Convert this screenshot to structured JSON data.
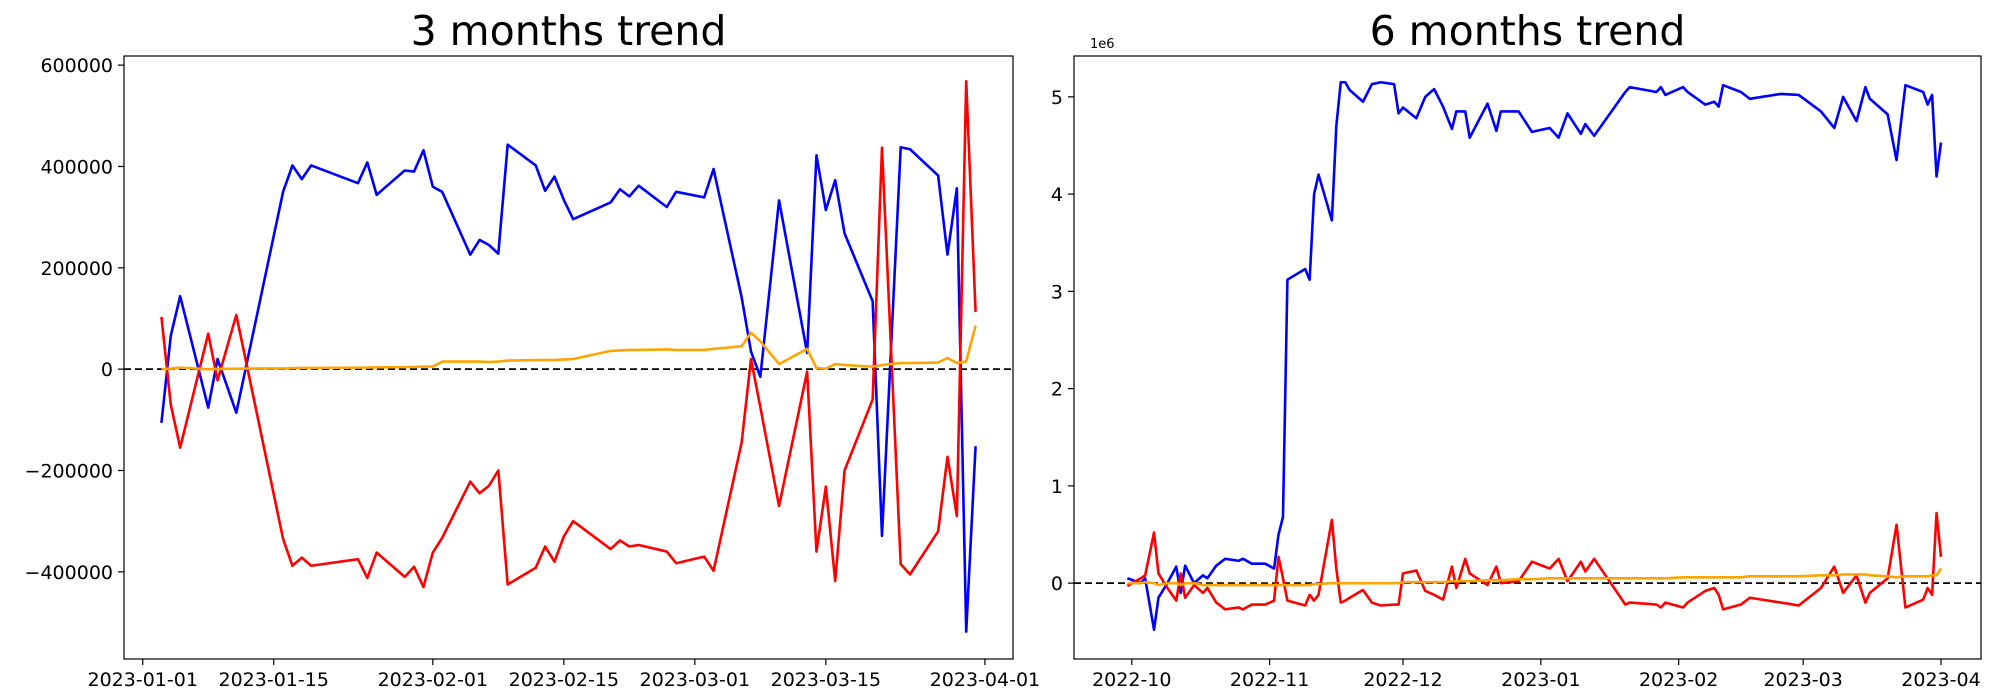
{
  "chart_data": [
    {
      "type": "line",
      "title": "3 months trend",
      "x": [
        "2023-01-03",
        "2023-01-04",
        "2023-01-05",
        "2023-01-08",
        "2023-01-09",
        "2023-01-11",
        "2023-01-16",
        "2023-01-17",
        "2023-01-18",
        "2023-01-19",
        "2023-01-24",
        "2023-01-25",
        "2023-01-26",
        "2023-01-29",
        "2023-01-30",
        "2023-01-31",
        "2023-02-01",
        "2023-02-02",
        "2023-02-05",
        "2023-02-06",
        "2023-02-07",
        "2023-02-08",
        "2023-02-09",
        "2023-02-12",
        "2023-02-13",
        "2023-02-14",
        "2023-02-15",
        "2023-02-16",
        "2023-02-20",
        "2023-02-21",
        "2023-02-22",
        "2023-02-23",
        "2023-02-26",
        "2023-02-27",
        "2023-03-02",
        "2023-03-03",
        "2023-03-06",
        "2023-03-07",
        "2023-03-08",
        "2023-03-10",
        "2023-03-13",
        "2023-03-14",
        "2023-03-15",
        "2023-03-16",
        "2023-03-17",
        "2023-03-20",
        "2023-03-21",
        "2023-03-23",
        "2023-03-24",
        "2023-03-27",
        "2023-03-28",
        "2023-03-29",
        "2023-03-30",
        "2023-03-31"
      ],
      "series": [
        {
          "color": "#0000ff",
          "values": [
            -106000,
            66000,
            144000,
            -76000,
            20000,
            -86000,
            350000,
            402000,
            375000,
            402000,
            367000,
            408000,
            344000,
            392000,
            390000,
            432000,
            360000,
            350000,
            226000,
            255000,
            245000,
            228000,
            443000,
            402000,
            352000,
            380000,
            334000,
            296000,
            329000,
            355000,
            341000,
            362000,
            320000,
            350000,
            339000,
            395000,
            142000,
            35000,
            -15000,
            333000,
            32000,
            422000,
            314000,
            373000,
            268000,
            134000,
            -329000,
            438000,
            434000,
            382000,
            226000,
            357000,
            -518000,
            -152000
          ]
        },
        {
          "color": "#ff0000",
          "values": [
            103000,
            -70000,
            -155000,
            70000,
            -22000,
            107000,
            -335000,
            -388000,
            -372000,
            -388000,
            -375000,
            -412000,
            -362000,
            -410000,
            -390000,
            -430000,
            -362000,
            -333000,
            -222000,
            -245000,
            -230000,
            -200000,
            -425000,
            -392000,
            -350000,
            -380000,
            -330000,
            -300000,
            -355000,
            -338000,
            -350000,
            -347000,
            -360000,
            -383000,
            -370000,
            -398000,
            -145000,
            20000,
            -75000,
            -270000,
            -5000,
            -360000,
            -232000,
            -418000,
            -200000,
            -60000,
            437000,
            -385000,
            -405000,
            -320000,
            -173000,
            -290000,
            568000,
            113000
          ]
        },
        {
          "color": "#ffa500",
          "values": [
            0,
            1000,
            3000,
            0,
            500,
            1000,
            1500,
            2000,
            2500,
            2500,
            3000,
            3000,
            3500,
            4000,
            4500,
            5000,
            5000,
            15000,
            15000,
            15000,
            14000,
            15000,
            17000,
            18000,
            18000,
            18000,
            19000,
            20000,
            36000,
            37000,
            38000,
            38000,
            39000,
            38000,
            38000,
            40000,
            45000,
            72000,
            55000,
            10000,
            40000,
            2000,
            1000,
            10000,
            8000,
            5000,
            8000,
            12000,
            12000,
            13000,
            22000,
            12000,
            15000,
            86000
          ]
        }
      ],
      "xlim": [
        "2022-12-30",
        "2023-04-04"
      ],
      "xticks": [
        "2023-01-01",
        "2023-01-15",
        "2023-02-01",
        "2023-02-15",
        "2023-03-01",
        "2023-03-15",
        "2023-04-01"
      ],
      "ylim": [
        -572000,
        618000
      ],
      "yticks": [
        {
          "value": -400000,
          "label": "−400000"
        },
        {
          "value": -200000,
          "label": "−200000"
        },
        0,
        200000,
        400000,
        600000
      ],
      "hline": 0
    },
    {
      "type": "line",
      "title": "6 months trend",
      "y_offset_label": "1e6",
      "x": [
        "2022-09-30",
        "2022-10-03",
        "2022-10-04",
        "2022-10-06",
        "2022-10-07",
        "2022-10-09",
        "2022-10-11",
        "2022-10-12",
        "2022-10-13",
        "2022-10-15",
        "2022-10-17",
        "2022-10-18",
        "2022-10-20",
        "2022-10-22",
        "2022-10-25",
        "2022-10-26",
        "2022-10-28",
        "2022-10-31",
        "2022-11-02",
        "2022-11-03",
        "2022-11-04",
        "2022-11-05",
        "2022-11-09",
        "2022-11-10",
        "2022-11-11",
        "2022-11-12",
        "2022-11-15",
        "2022-11-16",
        "2022-11-17",
        "2022-11-18",
        "2022-11-19",
        "2022-11-22",
        "2022-11-24",
        "2022-11-26",
        "2022-11-29",
        "2022-11-30",
        "2022-12-01",
        "2022-12-04",
        "2022-12-06",
        "2022-12-08",
        "2022-12-10",
        "2022-12-12",
        "2022-12-13",
        "2022-12-15",
        "2022-12-16",
        "2022-12-20",
        "2022-12-22",
        "2022-12-23",
        "2022-12-27",
        "2022-12-30",
        "2023-01-03",
        "2023-01-05",
        "2023-01-07",
        "2023-01-10",
        "2023-01-11",
        "2023-01-13",
        "2023-01-20",
        "2023-01-21",
        "2023-01-27",
        "2023-01-28",
        "2023-01-29",
        "2023-02-02",
        "2023-02-03",
        "2023-02-07",
        "2023-02-09",
        "2023-02-10",
        "2023-02-11",
        "2023-02-15",
        "2023-02-17",
        "2023-02-24",
        "2023-02-28",
        "2023-03-05",
        "2023-03-08",
        "2023-03-10",
        "2023-03-13",
        "2023-03-15",
        "2023-03-16",
        "2023-03-20",
        "2023-03-22",
        "2023-03-24",
        "2023-03-28",
        "2023-03-29",
        "2023-03-30",
        "2023-03-31",
        "2023-04-01"
      ],
      "series": [
        {
          "color": "#0000ff",
          "values": [
            0.05,
            0.0,
            0.05,
            -0.48,
            -0.15,
            0.0,
            0.17,
            -0.1,
            0.18,
            0.0,
            0.08,
            0.05,
            0.18,
            0.25,
            0.23,
            0.25,
            0.2,
            0.2,
            0.15,
            0.5,
            0.68,
            3.12,
            3.23,
            3.12,
            4.0,
            4.2,
            3.73,
            4.7,
            5.15,
            5.15,
            5.07,
            4.95,
            5.13,
            5.15,
            5.13,
            4.83,
            4.89,
            4.78,
            5.0,
            5.08,
            4.9,
            4.67,
            4.85,
            4.85,
            4.58,
            4.93,
            4.65,
            4.85,
            4.85,
            4.64,
            4.68,
            4.58,
            4.83,
            4.62,
            4.72,
            4.6,
            5.05,
            5.1,
            5.05,
            5.1,
            5.02,
            5.1,
            5.05,
            4.92,
            4.95,
            4.9,
            5.12,
            5.05,
            4.98,
            5.03,
            5.02,
            4.85,
            4.68,
            5.0,
            4.75,
            5.1,
            4.98,
            4.82,
            4.35,
            5.12,
            5.05,
            4.92,
            5.02,
            4.18,
            4.53
          ]
        },
        {
          "color": "#ff0000",
          "values": [
            -0.03,
            0.05,
            0.08,
            0.52,
            0.1,
            -0.05,
            -0.18,
            0.1,
            -0.15,
            -0.02,
            -0.1,
            -0.05,
            -0.2,
            -0.27,
            -0.25,
            -0.27,
            -0.22,
            -0.22,
            -0.18,
            0.27,
            0.05,
            -0.18,
            -0.23,
            -0.12,
            -0.18,
            -0.12,
            0.65,
            0.15,
            -0.2,
            -0.18,
            -0.15,
            -0.07,
            -0.2,
            -0.23,
            -0.22,
            -0.22,
            0.1,
            0.13,
            -0.08,
            -0.12,
            -0.17,
            0.17,
            -0.05,
            0.25,
            0.1,
            -0.02,
            0.17,
            0.0,
            0.02,
            0.22,
            0.15,
            0.25,
            0.02,
            0.22,
            0.12,
            0.25,
            -0.22,
            -0.2,
            -0.22,
            -0.25,
            -0.2,
            -0.25,
            -0.2,
            -0.08,
            -0.05,
            -0.12,
            -0.27,
            -0.22,
            -0.15,
            -0.2,
            -0.23,
            -0.05,
            0.17,
            -0.1,
            0.08,
            -0.2,
            -0.1,
            0.05,
            0.6,
            -0.25,
            -0.17,
            -0.05,
            -0.12,
            0.72,
            0.27
          ]
        },
        {
          "color": "#ffa500",
          "values": [
            0,
            0,
            0.01,
            0,
            -0.02,
            0,
            0,
            -0.02,
            0,
            0,
            -0.02,
            -0.02,
            -0.02,
            -0.02,
            -0.02,
            -0.02,
            -0.02,
            -0.02,
            -0.02,
            -0.02,
            -0.02,
            -0.02,
            -0.02,
            -0.02,
            -0.01,
            -0.01,
            0,
            0,
            0,
            0,
            0,
            0,
            0,
            0,
            0,
            0,
            0.01,
            0.01,
            0.01,
            0.01,
            0.01,
            0.02,
            0.02,
            0.02,
            0.02,
            0.03,
            0.03,
            0.03,
            0.04,
            0.04,
            0.05,
            0.05,
            0.05,
            0.05,
            0.05,
            0.05,
            0.05,
            0.05,
            0.05,
            0.05,
            0.05,
            0.06,
            0.06,
            0.06,
            0.06,
            0.06,
            0.06,
            0.06,
            0.07,
            0.07,
            0.07,
            0.08,
            0.08,
            0.09,
            0.09,
            0.09,
            0.08,
            0.07,
            0.06,
            0.07,
            0.07,
            0.07,
            0.08,
            0.08,
            0.15
          ]
        }
      ],
      "xlim": [
        "2022-09-18",
        "2023-04-10"
      ],
      "xticks": [
        {
          "value": "2022-10-01",
          "label": "2022-10"
        },
        {
          "value": "2022-11-01",
          "label": "2022-11"
        },
        {
          "value": "2022-12-01",
          "label": "2022-12"
        },
        {
          "value": "2023-01-01",
          "label": "2023-01"
        },
        {
          "value": "2023-02-01",
          "label": "2023-02"
        },
        {
          "value": "2023-03-01",
          "label": "2023-03"
        },
        {
          "value": "2023-04-01",
          "label": "2023-04"
        }
      ],
      "ylim": [
        -0.78,
        5.42
      ],
      "yticks": [
        0,
        1,
        2,
        3,
        4,
        5
      ],
      "hline": 0
    }
  ]
}
